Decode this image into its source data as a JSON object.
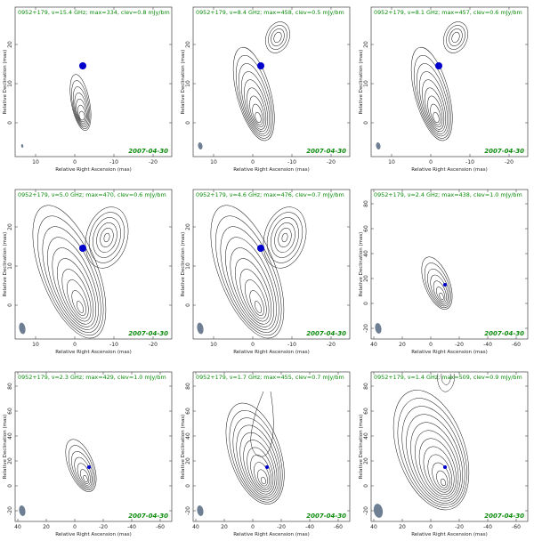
{
  "panels": [
    {
      "header": "0952+179, ν=15.4 GHz; max=334, clev=0.8 mJy/bm",
      "date": "2007-04-30",
      "xlabel": "Relative Right Ascension (mas)",
      "ylabel": "Relative Declination (mas)",
      "xticks": [
        "10",
        "0",
        "-10",
        "-20"
      ],
      "yticks": [
        "0",
        "10",
        "20"
      ],
      "core": true,
      "jet": "compact"
    },
    {
      "header": "0952+179, ν=8.4 GHz; max=458, clev=0.5 mJy/bm",
      "date": "2007-04-30",
      "xlabel": "Relative Right Ascension (mas)",
      "ylabel": "Relative Declination (mas)",
      "xticks": [
        "10",
        "0",
        "-10",
        "-20"
      ],
      "yticks": [
        "0",
        "10",
        "20"
      ],
      "core": true,
      "jet": "medium"
    },
    {
      "header": "0952+179, ν=8.1 GHz; max=457, clev=0.6 mJy/bm",
      "date": "2007-04-30",
      "xlabel": "Relative Right Ascension (mas)",
      "ylabel": "Relative Declination (mas)",
      "xticks": [
        "10",
        "0",
        "-10",
        "-20"
      ],
      "yticks": [
        "0",
        "10",
        "20"
      ],
      "core": true,
      "jet": "medium"
    },
    {
      "header": "0952+179, ν=5.0 GHz; max=470, clev=0.6 mJy/bm",
      "date": "2007-04-30",
      "xlabel": "Relative Right Ascension (mas)",
      "ylabel": "Relative Declination (mas)",
      "xticks": [
        "10",
        "0",
        "-10",
        "-20"
      ],
      "yticks": [
        "0",
        "10",
        "20"
      ],
      "core": true,
      "jet": "wide"
    },
    {
      "header": "0952+179, ν=4.6 GHz; max=476, clev=0.7 mJy/bm",
      "date": "2007-04-30",
      "xlabel": "Relative Right Ascension (mas)",
      "ylabel": "Relative Declination (mas)",
      "xticks": [
        "10",
        "0",
        "-10",
        "-20"
      ],
      "yticks": [
        "0",
        "10",
        "20"
      ],
      "core": true,
      "jet": "wide"
    },
    {
      "header": "0952+179, ν=2.4 GHz; max=438, clev=1.0 mJy/bm",
      "date": "2007-04-30",
      "xlabel": "Relative Right Ascension (mas)",
      "ylabel": "Relative Declination (mas)",
      "xticks": [
        "40",
        "20",
        "0",
        "-20",
        "-40",
        "-60"
      ],
      "yticks": [
        "-20",
        "0",
        "20",
        "40",
        "60",
        "80"
      ],
      "core": false,
      "jet": "small"
    },
    {
      "header": "0952+179, ν=2.3 GHz; max=429, clev=1.0 mJy/bm",
      "date": "2007-04-30",
      "xlabel": "Relative Right Ascension (mas)",
      "ylabel": "Relative Declination (mas)",
      "xticks": [
        "40",
        "20",
        "0",
        "-20",
        "-40",
        "-60"
      ],
      "yticks": [
        "-20",
        "0",
        "20",
        "40",
        "60",
        "80"
      ],
      "core": false,
      "jet": "small"
    },
    {
      "header": "0952+179, ν=1.7 GHz; max=455, clev=0.7 mJy/bm",
      "date": "2007-04-30",
      "xlabel": "Relative Right Ascension (mas)",
      "ylabel": "Relative Declination (mas)",
      "xticks": [
        "40",
        "20",
        "0",
        "-20",
        "-40",
        "-60"
      ],
      "yticks": [
        "-20",
        "0",
        "20",
        "40",
        "60",
        "80"
      ],
      "core": false,
      "jet": "large"
    },
    {
      "header": "0952+179, ν=1.4 GHz; max=509, clev=0.9 mJy/bm",
      "date": "2007-04-30",
      "xlabel": "Relative Right Ascension (mas)",
      "ylabel": "Relative Declination (mas)",
      "xticks": [
        "40",
        "20",
        "0",
        "-20",
        "-40",
        "-60"
      ],
      "yticks": [
        "-20",
        "0",
        "20",
        "40",
        "60",
        "80"
      ],
      "core": false,
      "jet": "xlarge"
    }
  ],
  "colors": {
    "header_text": "#0a8a0a",
    "date_text": "#0a8a0a",
    "core_marker": "#0000cc",
    "beam": "#6e7f93",
    "contour": "#111111",
    "frame": "#222222"
  }
}
